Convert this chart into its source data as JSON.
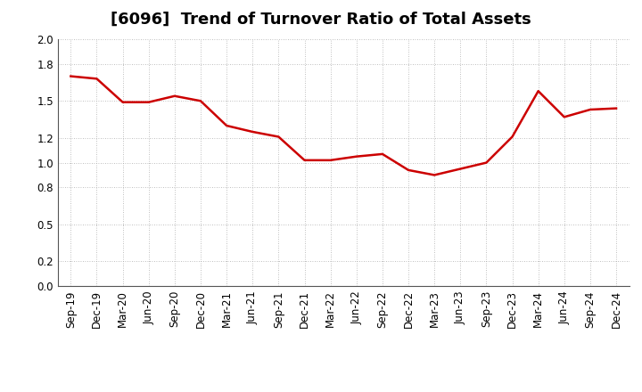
{
  "title": "[6096]  Trend of Turnover Ratio of Total Assets",
  "labels": [
    "Sep-19",
    "Dec-19",
    "Mar-20",
    "Jun-20",
    "Sep-20",
    "Dec-20",
    "Mar-21",
    "Jun-21",
    "Sep-21",
    "Dec-21",
    "Mar-22",
    "Jun-22",
    "Sep-22",
    "Dec-22",
    "Mar-23",
    "Jun-23",
    "Sep-23",
    "Dec-23",
    "Mar-24",
    "Jun-24",
    "Sep-24",
    "Dec-24"
  ],
  "values": [
    1.7,
    1.68,
    1.49,
    1.49,
    1.54,
    1.5,
    1.3,
    1.25,
    1.21,
    1.02,
    1.02,
    1.05,
    1.07,
    0.94,
    0.9,
    0.95,
    1.0,
    1.21,
    1.58,
    1.37,
    1.43,
    1.44
  ],
  "line_color": "#cc0000",
  "background_color": "#ffffff",
  "grid_color": "#aaaaaa",
  "title_fontsize": 13,
  "tick_fontsize": 8.5,
  "ylim": [
    0.0,
    2.0
  ],
  "yticks": [
    0.0,
    0.2,
    0.5,
    0.8,
    1.0,
    1.2,
    1.5,
    1.8,
    2.0
  ]
}
